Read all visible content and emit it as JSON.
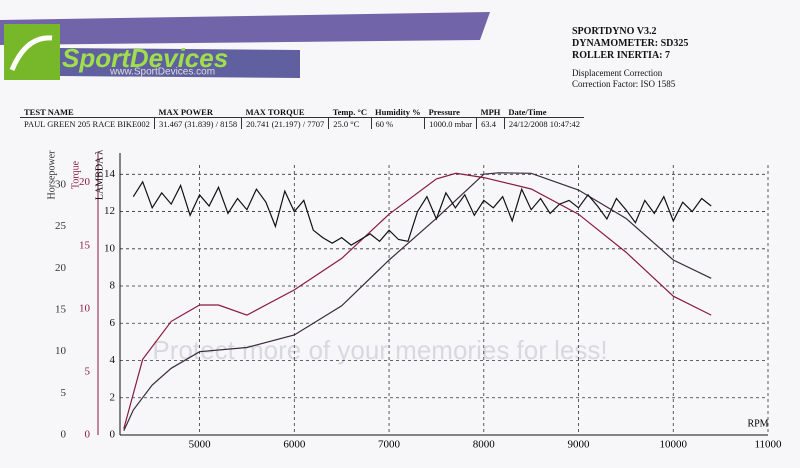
{
  "header": {
    "logo": "SportDevices",
    "website": "www.SportDevices.com",
    "info": [
      "SPORTDYNO V3.2",
      "DYNAMOMETER: SD325",
      "ROLLER INERTIA: 7"
    ],
    "correction": [
      "Displacement Correction",
      "Correction Factor: ISO 1585"
    ]
  },
  "table": {
    "headers": [
      "TEST NAME",
      "MAX POWER",
      "MAX TORQUE",
      "Temp. °C",
      "Humidity %",
      "Pressure",
      "MPH",
      "Date/Time"
    ],
    "rows": [
      [
        "PAUL GREEN 205 RACE BIKE002",
        "31.467 (31.839) / 8158",
        "20.741 (21.197) / 7707",
        "25.0 °C",
        "60 %",
        "1000.0 mbar",
        "63.4",
        "24/12/2008 10:47:42"
      ]
    ]
  },
  "watermark": "Protect more of your memories for less!",
  "chart_data": {
    "type": "line",
    "xlabel": "RPM",
    "ylabel": "Horsepower",
    "y2label": "Torque",
    "y3label": "LAMBDA λ",
    "xlim": [
      4160,
      11000
    ],
    "xticks": [
      5000,
      6000,
      7000,
      8000,
      9000,
      10000,
      11000
    ],
    "ylim": [
      0,
      32.4
    ],
    "yticks": [
      0,
      5,
      10,
      15,
      20,
      25,
      30
    ],
    "y2lim": [
      0,
      21.4
    ],
    "y2ticks": [
      0,
      5,
      10,
      15,
      20
    ],
    "y3lim": [
      0,
      14.5
    ],
    "y3ticks": [
      0,
      2,
      4,
      6,
      8,
      10,
      12,
      14
    ],
    "grid": true,
    "series": [
      {
        "name": "Horsepower",
        "color": "#3b2a3c",
        "axis": "y",
        "x": [
          4200,
          4300,
          4500,
          4700,
          5000,
          5500,
          6000,
          6500,
          7000,
          7500,
          8000,
          8158,
          8500,
          9000,
          9500,
          10000,
          10400
        ],
        "values": [
          0.5,
          3,
          6,
          8,
          10,
          10.5,
          12,
          15.5,
          21,
          26,
          31.3,
          31.467,
          31.4,
          29.4,
          26,
          21,
          18.8
        ]
      },
      {
        "name": "Torque",
        "color": "#8a1a3e",
        "axis": "y2",
        "x": [
          4200,
          4400,
          4700,
          5000,
          5200,
          5500,
          6000,
          6500,
          7000,
          7500,
          7707,
          8000,
          8500,
          9000,
          9500,
          10000,
          10400
        ],
        "values": [
          0.5,
          6,
          9,
          10.3,
          10.3,
          9.5,
          11.5,
          14,
          17.5,
          20.3,
          20.741,
          20.4,
          19.5,
          17.5,
          14.5,
          11,
          9.5
        ]
      },
      {
        "name": "LAMBDA λ",
        "color": "#111111",
        "axis": "y3",
        "x": [
          4300,
          4400,
          4500,
          4600,
          4700,
          4800,
          4900,
          5000,
          5100,
          5200,
          5300,
          5400,
          5500,
          5600,
          5700,
          5800,
          5900,
          6000,
          6100,
          6200,
          6300,
          6400,
          6500,
          6600,
          6700,
          6800,
          6900,
          7000,
          7100,
          7200,
          7300,
          7400,
          7500,
          7600,
          7700,
          7800,
          7900,
          8000,
          8100,
          8200,
          8300,
          8400,
          8500,
          8600,
          8700,
          8800,
          8900,
          9000,
          9100,
          9200,
          9300,
          9400,
          9500,
          9600,
          9700,
          9800,
          9900,
          10000,
          10100,
          10200,
          10300,
          10400
        ],
        "values": [
          12.8,
          13.6,
          12.2,
          13.0,
          12.4,
          13.4,
          11.8,
          12.9,
          12.3,
          13.3,
          11.9,
          12.7,
          12.1,
          13.2,
          12.5,
          11.2,
          13.1,
          12.0,
          12.6,
          11.0,
          10.6,
          10.3,
          10.6,
          10.2,
          10.5,
          10.8,
          10.4,
          11.0,
          10.5,
          10.4,
          12.0,
          12.8,
          11.6,
          13.0,
          12.2,
          12.9,
          11.8,
          12.6,
          12.2,
          12.8,
          11.5,
          13.2,
          12.1,
          12.7,
          11.9,
          12.4,
          12.6,
          12.2,
          12.9,
          12.3,
          11.6,
          12.7,
          12.1,
          11.4,
          12.6,
          11.9,
          12.8,
          11.5,
          12.5,
          12.0,
          12.7,
          12.3
        ]
      }
    ]
  }
}
